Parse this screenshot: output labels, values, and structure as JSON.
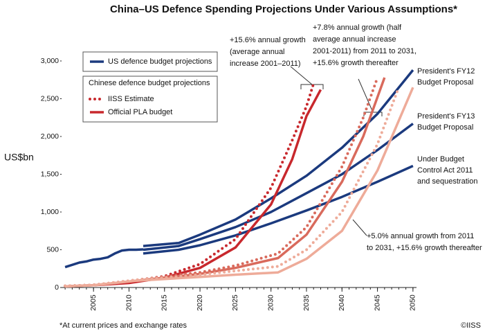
{
  "chart_data": {
    "type": "line",
    "title": "China–US Defence Spending Projections Under Various Assumptions*",
    "y_label": "US$bn",
    "footnote": "*At current prices and exchange rates",
    "credit": "©IISS",
    "xlim": [
      2000.5,
      2050.5
    ],
    "xticks": [
      2005,
      2010,
      2015,
      2020,
      2025,
      2030,
      2035,
      2040,
      2045,
      2050
    ],
    "ylim": [
      0,
      3000
    ],
    "yticks": [
      0,
      500,
      {
        "value": 1000,
        "label": "1,000"
      },
      {
        "value": 1500,
        "label": "1,500"
      },
      {
        "value": 2000,
        "label": "2,000"
      },
      {
        "value": 2500,
        "label": "2,500"
      },
      {
        "value": 3000,
        "label": "3,000"
      }
    ],
    "legend_group_title": "Chinese defence budget projections",
    "series": [
      {
        "name": "US defence budget projections",
        "color": "#1b3a7e",
        "style": "solid",
        "x": [
          2001,
          2003,
          2004,
          2005,
          2006,
          2007,
          2008,
          2009,
          2010,
          2011,
          2012
        ],
        "values": [
          270,
          330,
          345,
          370,
          380,
          400,
          450,
          490,
          500,
          500,
          505
        ]
      },
      {
        "label": [
          "President's FY12",
          "Budget Proposal"
        ],
        "color": "#1b3a7e",
        "style": "solid",
        "x": [
          2012,
          2017,
          2020,
          2025,
          2030,
          2035,
          2040,
          2045,
          2050
        ],
        "values": [
          550,
          590,
          700,
          900,
          1180,
          1480,
          1850,
          2300,
          2880
        ]
      },
      {
        "label": [
          "President's FY13",
          "Budget Proposal"
        ],
        "color": "#1b3a7e",
        "style": "solid",
        "x": [
          2012,
          2017,
          2020,
          2025,
          2030,
          2035,
          2040,
          2045,
          2050
        ],
        "values": [
          500,
          550,
          640,
          800,
          1000,
          1250,
          1500,
          1820,
          2170
        ]
      },
      {
        "label": [
          "Under Budget",
          "Control Act 2011",
          "and sequestration"
        ],
        "color": "#1b3a7e",
        "style": "solid",
        "x": [
          2012,
          2017,
          2020,
          2025,
          2030,
          2035,
          2040,
          2045,
          2050
        ],
        "values": [
          450,
          500,
          560,
          690,
          850,
          1020,
          1200,
          1400,
          1610
        ]
      },
      {
        "name": "IISS Estimate",
        "color": "#c8282d",
        "style": "dotted",
        "x": [
          2001,
          2005,
          2010,
          2015,
          2020,
          2025,
          2030,
          2033,
          2035,
          2036
        ],
        "values": [
          20,
          35,
          75,
          150,
          310,
          640,
          1320,
          1950,
          2400,
          2700
        ]
      },
      {
        "name": "Official PLA budget",
        "color": "#c8282d",
        "style": "solid",
        "x": [
          2001,
          2005,
          2010,
          2015,
          2020,
          2025,
          2030,
          2033,
          2035,
          2037
        ],
        "values": [
          15,
          30,
          60,
          130,
          260,
          530,
          1100,
          1700,
          2270,
          2620
        ]
      },
      {
        "color": "#d96a5c",
        "style": "dotted",
        "x": [
          2001,
          2005,
          2011,
          2020,
          2025,
          2031,
          2035,
          2040,
          2043,
          2045
        ],
        "values": [
          20,
          35,
          100,
          200,
          290,
          450,
          800,
          1600,
          2250,
          2780
        ]
      },
      {
        "color": "#d96a5c",
        "style": "solid",
        "x": [
          2001,
          2005,
          2011,
          2020,
          2025,
          2031,
          2035,
          2040,
          2043,
          2046
        ],
        "values": [
          15,
          30,
          90,
          180,
          260,
          390,
          700,
          1400,
          2000,
          2780
        ]
      },
      {
        "color": "#eeab99",
        "style": "dotted",
        "x": [
          2001,
          2005,
          2011,
          2020,
          2025,
          2031,
          2035,
          2040,
          2045,
          2048
        ],
        "values": [
          20,
          35,
          100,
          170,
          220,
          280,
          500,
          1000,
          1900,
          2650
        ]
      },
      {
        "color": "#eeab99",
        "style": "solid",
        "x": [
          2001,
          2005,
          2011,
          2020,
          2025,
          2031,
          2035,
          2040,
          2045,
          2050
        ],
        "values": [
          15,
          30,
          90,
          140,
          170,
          200,
          380,
          750,
          1550,
          2650
        ]
      }
    ],
    "annotations": [
      [
        "+15.6% annual growth",
        "(average annual",
        "increase 2001–2011)"
      ],
      [
        "+7.8% annual growth (half",
        "average annual increase",
        "2001-2011) from 2011 to 2031,",
        "+15.6% growth thereafter"
      ],
      [
        "+5.0% annual growth from 2011",
        "to 2031, +15.6% growth thereafter"
      ]
    ]
  }
}
